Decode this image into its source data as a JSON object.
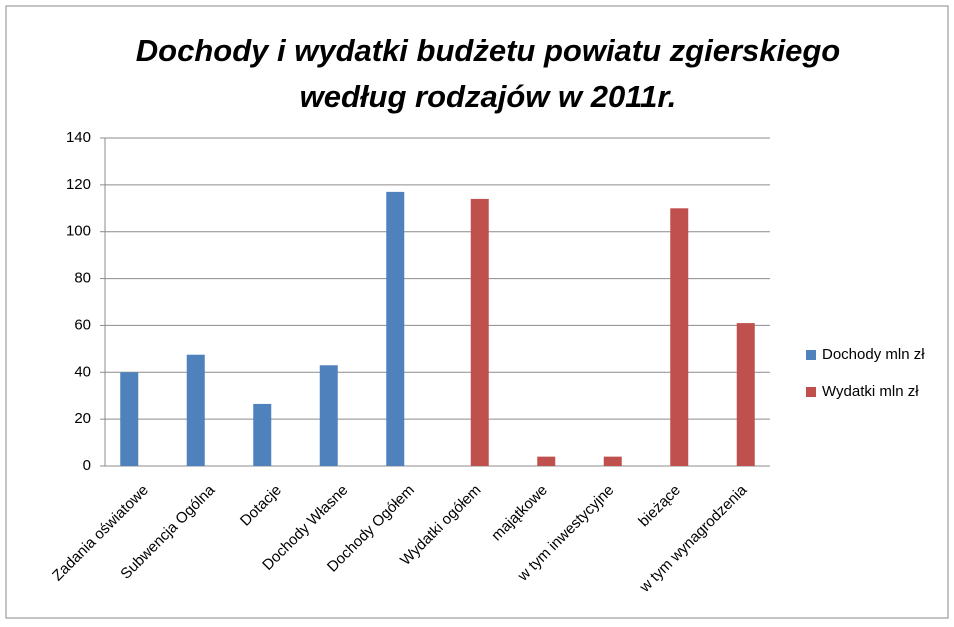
{
  "chart_data": {
    "type": "bar",
    "title": "Dochody i wydatki budżetu powiatu zgierskiego według rodzajów w 2011r.",
    "categories": [
      "Zadania oświatowe",
      "Subwencja Ogólna",
      "Dotacje",
      "Dochody Własne",
      "Dochody Ogółem",
      "Wydatki ogółem",
      "majątkowe",
      "w tym inwestycyjne",
      "bieżące",
      "w tym wynagrodzenia"
    ],
    "series": [
      {
        "name": "Dochody mln zł",
        "color": "#4f81bd",
        "values": [
          40,
          47.5,
          26.5,
          43,
          117,
          null,
          null,
          null,
          null,
          null
        ]
      },
      {
        "name": "Wydatki mln zł",
        "color": "#c0504d",
        "values": [
          null,
          null,
          null,
          null,
          null,
          114,
          4,
          4,
          110,
          61
        ]
      }
    ],
    "ylim": [
      0,
      140
    ],
    "yticks": [
      0,
      20,
      40,
      60,
      80,
      100,
      120,
      140
    ],
    "grid": true,
    "legend": "right"
  }
}
